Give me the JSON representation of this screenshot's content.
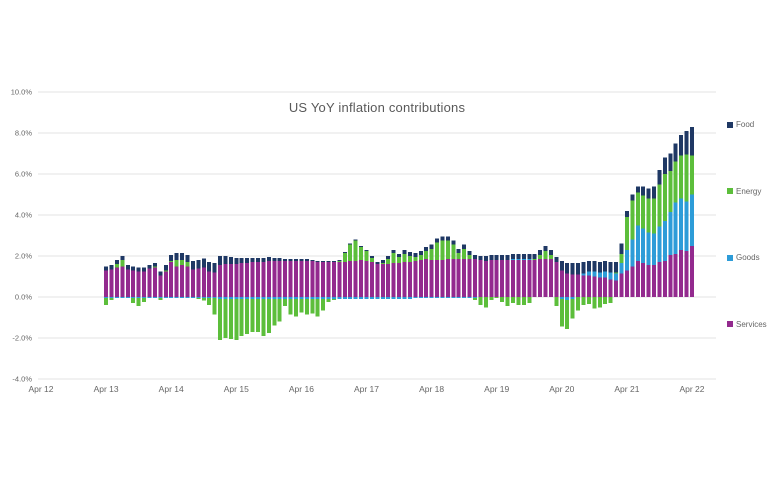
{
  "page": {
    "background": "#ffffff"
  },
  "chart_data": {
    "type": "bar",
    "stacked": true,
    "title": "US YoY inflation contributions",
    "title_color": "#595959",
    "axis_label_color": "#666666",
    "gridline_color": "#e3e3e3",
    "grid": true,
    "ylim": [
      -4,
      10
    ],
    "y_tick_step": 2,
    "y_tick_format": "percent_one_decimal",
    "y_tick_labels": [
      "10.0%",
      "8.0%",
      "6.0%",
      "4.0%",
      "2.0%",
      "0.0%",
      "-2.0%",
      "-4.0%"
    ],
    "x_tick_labels": [
      "Apr 12",
      "Apr 13",
      "Apr 14",
      "Apr 15",
      "Apr 16",
      "Apr 17",
      "Apr 18",
      "Apr 19",
      "Apr 20",
      "Apr 21",
      "Apr 22"
    ],
    "x_frequency": "monthly",
    "first_bar_month": "Apr 2013",
    "last_bar_month": "Apr 2022",
    "legend_position": "right",
    "legend": [
      {
        "label": "Food",
        "color": "#1f3864"
      },
      {
        "label": "Energy",
        "color": "#5cbe3b"
      },
      {
        "label": "Goods",
        "color": "#2d9cd8"
      },
      {
        "label": "Services",
        "color": "#932a8e"
      }
    ],
    "stack_order_bottom_to_top": [
      "Services",
      "Goods",
      "Energy",
      "Food"
    ],
    "series": [
      {
        "name": "Services",
        "color": "#932a8e",
        "values": [
          1.3,
          1.35,
          1.45,
          1.5,
          1.35,
          1.3,
          1.25,
          1.25,
          1.4,
          1.45,
          1.05,
          1.25,
          1.7,
          1.5,
          1.55,
          1.5,
          1.35,
          1.4,
          1.45,
          1.25,
          1.2,
          1.55,
          1.6,
          1.6,
          1.6,
          1.65,
          1.65,
          1.7,
          1.7,
          1.7,
          1.75,
          1.75,
          1.75,
          1.75,
          1.75,
          1.75,
          1.75,
          1.75,
          1.75,
          1.7,
          1.7,
          1.7,
          1.7,
          1.7,
          1.7,
          1.75,
          1.75,
          1.8,
          1.75,
          1.7,
          1.6,
          1.6,
          1.6,
          1.65,
          1.65,
          1.7,
          1.7,
          1.75,
          1.8,
          1.85,
          1.8,
          1.8,
          1.8,
          1.85,
          1.85,
          1.85,
          1.85,
          1.85,
          1.85,
          1.8,
          1.75,
          1.8,
          1.8,
          1.8,
          1.8,
          1.8,
          1.8,
          1.8,
          1.8,
          1.8,
          1.85,
          1.85,
          1.85,
          1.7,
          1.3,
          1.15,
          1.1,
          1.1,
          1.05,
          1.05,
          1.0,
          0.95,
          0.95,
          0.85,
          0.8,
          1.15,
          1.3,
          1.5,
          1.75,
          1.65,
          1.55,
          1.55,
          1.7,
          1.75,
          2.05,
          2.1,
          2.3,
          2.25,
          2.5
        ]
      },
      {
        "name": "Goods",
        "color": "#2d9cd8",
        "values": [
          -0.05,
          -0.05,
          -0.05,
          -0.05,
          -0.05,
          -0.05,
          -0.05,
          -0.05,
          -0.05,
          -0.05,
          -0.05,
          -0.05,
          -0.05,
          -0.05,
          -0.05,
          -0.05,
          -0.05,
          -0.05,
          -0.05,
          -0.05,
          -0.05,
          -0.1,
          -0.1,
          -0.1,
          -0.1,
          -0.1,
          -0.1,
          -0.1,
          -0.1,
          -0.1,
          -0.1,
          -0.1,
          -0.1,
          -0.1,
          -0.1,
          -0.1,
          -0.1,
          -0.1,
          -0.1,
          -0.1,
          -0.1,
          -0.1,
          -0.1,
          -0.1,
          -0.1,
          -0.1,
          -0.1,
          -0.1,
          -0.1,
          -0.1,
          -0.1,
          -0.1,
          -0.1,
          -0.1,
          -0.1,
          -0.1,
          -0.1,
          -0.05,
          -0.05,
          -0.05,
          -0.05,
          -0.05,
          -0.05,
          -0.05,
          -0.05,
          -0.05,
          -0.05,
          -0.05,
          -0.05,
          0.0,
          0.0,
          0.0,
          0.0,
          0.0,
          0.0,
          0.05,
          0.05,
          0.05,
          0.05,
          0.0,
          0.0,
          0.0,
          0.0,
          0.0,
          -0.1,
          -0.15,
          -0.1,
          0.0,
          0.1,
          0.2,
          0.25,
          0.25,
          0.3,
          0.35,
          0.35,
          0.5,
          1.0,
          1.3,
          1.75,
          1.7,
          1.6,
          1.55,
          1.75,
          1.95,
          2.1,
          2.5,
          2.5,
          2.4,
          2.5
        ]
      },
      {
        "name": "Energy",
        "color": "#5cbe3b",
        "values": [
          -0.35,
          -0.1,
          0.15,
          0.3,
          0.0,
          -0.25,
          -0.4,
          -0.2,
          0.0,
          0.05,
          -0.1,
          0.05,
          0.05,
          0.3,
          0.25,
          0.2,
          0.0,
          -0.05,
          -0.12,
          -0.35,
          -0.8,
          -2.0,
          -1.9,
          -1.95,
          -2.0,
          -1.8,
          -1.7,
          -1.6,
          -1.6,
          -1.8,
          -1.65,
          -1.3,
          -1.1,
          -0.35,
          -0.75,
          -0.85,
          -0.65,
          -0.75,
          -0.7,
          -0.85,
          -0.55,
          -0.15,
          -0.05,
          0.05,
          0.45,
          0.8,
          1.0,
          0.65,
          0.5,
          0.2,
          0.0,
          0.05,
          0.25,
          0.5,
          0.3,
          0.4,
          0.3,
          0.2,
          0.25,
          0.4,
          0.55,
          0.85,
          0.95,
          0.9,
          0.7,
          0.3,
          0.5,
          0.2,
          -0.1,
          -0.4,
          -0.5,
          -0.15,
          -0.05,
          -0.25,
          -0.45,
          -0.3,
          -0.4,
          -0.4,
          -0.3,
          0.05,
          0.2,
          0.4,
          0.2,
          -0.45,
          -1.35,
          -1.4,
          -0.95,
          -0.65,
          -0.4,
          -0.35,
          -0.55,
          -0.5,
          -0.35,
          -0.3,
          0.05,
          0.45,
          1.6,
          1.9,
          1.6,
          1.6,
          1.65,
          1.7,
          2.05,
          2.3,
          2.0,
          2.0,
          2.1,
          2.3,
          1.9
        ]
      },
      {
        "name": "Food",
        "color": "#1f3864",
        "values": [
          0.2,
          0.2,
          0.2,
          0.2,
          0.2,
          0.2,
          0.2,
          0.2,
          0.15,
          0.15,
          0.2,
          0.25,
          0.3,
          0.35,
          0.35,
          0.35,
          0.4,
          0.4,
          0.42,
          0.45,
          0.45,
          0.45,
          0.4,
          0.35,
          0.3,
          0.25,
          0.25,
          0.2,
          0.2,
          0.2,
          0.2,
          0.15,
          0.15,
          0.1,
          0.1,
          0.1,
          0.1,
          0.1,
          0.05,
          0.05,
          0.05,
          0.05,
          0.05,
          0.05,
          0.05,
          0.05,
          0.05,
          0.05,
          0.05,
          0.1,
          0.1,
          0.15,
          0.15,
          0.15,
          0.15,
          0.2,
          0.2,
          0.2,
          0.2,
          0.2,
          0.2,
          0.2,
          0.2,
          0.2,
          0.2,
          0.2,
          0.2,
          0.2,
          0.2,
          0.2,
          0.25,
          0.25,
          0.25,
          0.25,
          0.25,
          0.25,
          0.25,
          0.25,
          0.25,
          0.25,
          0.25,
          0.25,
          0.25,
          0.25,
          0.45,
          0.5,
          0.55,
          0.55,
          0.55,
          0.5,
          0.5,
          0.5,
          0.5,
          0.5,
          0.5,
          0.5,
          0.3,
          0.3,
          0.3,
          0.45,
          0.5,
          0.6,
          0.7,
          0.8,
          0.85,
          0.9,
          1.0,
          1.15,
          1.4
        ]
      }
    ]
  }
}
